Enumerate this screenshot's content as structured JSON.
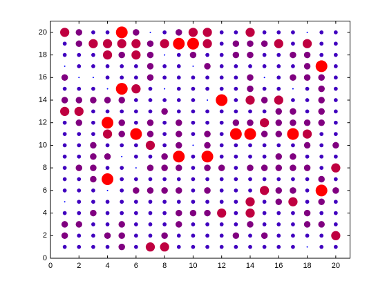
{
  "chart_data": {
    "type": "scatter",
    "x": [
      1,
      2,
      3,
      4,
      5,
      6,
      7,
      8,
      9,
      10,
      11,
      12,
      13,
      14,
      15,
      16,
      17,
      18,
      19,
      20
    ],
    "y": [
      20,
      19,
      18,
      17,
      16,
      15,
      14,
      13,
      12,
      11,
      10,
      9,
      8,
      7,
      6,
      5,
      4,
      3,
      2,
      1
    ],
    "sizes": [
      [
        4,
        3,
        2,
        2,
        5,
        3,
        1,
        2,
        3,
        4,
        4,
        2,
        2,
        4,
        2,
        2,
        2,
        1,
        2,
        2
      ],
      [
        2,
        3,
        4,
        4,
        4,
        4,
        3,
        4,
        5,
        5,
        4,
        2,
        3,
        3,
        3,
        4,
        2,
        4,
        2,
        2
      ],
      [
        2,
        2,
        2,
        4,
        3,
        4,
        3,
        1,
        2,
        3,
        2,
        2,
        3,
        3,
        2,
        2,
        3,
        3,
        2,
        2
      ],
      [
        1,
        2,
        2,
        2,
        2,
        2,
        3,
        2,
        2,
        1,
        3,
        2,
        2,
        2,
        2,
        2,
        2,
        3,
        5,
        2
      ],
      [
        3,
        1,
        1,
        2,
        2,
        2,
        3,
        2,
        2,
        2,
        2,
        2,
        2,
        3,
        1,
        2,
        3,
        3,
        3,
        2
      ],
      [
        2,
        2,
        2,
        1,
        5,
        4,
        2,
        1,
        2,
        2,
        2,
        2,
        2,
        3,
        2,
        2,
        1,
        2,
        3,
        2
      ],
      [
        3,
        3,
        3,
        3,
        3,
        2,
        2,
        2,
        2,
        2,
        1,
        5,
        2,
        4,
        3,
        4,
        2,
        2,
        3,
        2
      ],
      [
        4,
        4,
        2,
        2,
        2,
        2,
        2,
        3,
        2,
        2,
        2,
        2,
        2,
        2,
        2,
        3,
        3,
        2,
        3,
        2
      ],
      [
        2,
        3,
        2,
        5,
        3,
        2,
        3,
        2,
        3,
        2,
        2,
        2,
        3,
        3,
        4,
        3,
        3,
        3,
        3,
        2
      ],
      [
        2,
        2,
        2,
        4,
        3,
        5,
        3,
        2,
        3,
        2,
        3,
        2,
        5,
        5,
        3,
        3,
        5,
        4,
        2,
        2
      ],
      [
        2,
        2,
        3,
        2,
        2,
        2,
        4,
        2,
        3,
        1,
        3,
        2,
        2,
        2,
        2,
        2,
        2,
        3,
        2,
        3
      ],
      [
        2,
        2,
        3,
        3,
        1,
        2,
        2,
        3,
        5,
        2,
        5,
        2,
        2,
        2,
        2,
        3,
        3,
        2,
        2,
        2
      ],
      [
        2,
        3,
        3,
        2,
        2,
        1,
        3,
        3,
        3,
        2,
        3,
        3,
        2,
        3,
        3,
        3,
        3,
        3,
        2,
        4
      ],
      [
        2,
        2,
        3,
        5,
        2,
        2,
        2,
        2,
        2,
        2,
        2,
        2,
        2,
        2,
        2,
        2,
        2,
        2,
        3,
        2
      ],
      [
        2,
        2,
        2,
        1,
        2,
        3,
        3,
        3,
        3,
        2,
        3,
        2,
        2,
        2,
        4,
        3,
        3,
        2,
        5,
        3
      ],
      [
        1,
        2,
        2,
        2,
        2,
        2,
        2,
        2,
        2,
        2,
        2,
        2,
        2,
        4,
        2,
        3,
        4,
        2,
        3,
        2
      ],
      [
        2,
        2,
        3,
        2,
        2,
        2,
        2,
        2,
        3,
        3,
        3,
        4,
        2,
        4,
        2,
        2,
        2,
        3,
        2,
        2
      ],
      [
        3,
        3,
        2,
        2,
        3,
        2,
        2,
        2,
        3,
        2,
        2,
        2,
        2,
        3,
        2,
        2,
        2,
        3,
        3,
        2
      ],
      [
        3,
        2,
        2,
        3,
        3,
        2,
        2,
        3,
        2,
        2,
        2,
        2,
        3,
        2,
        3,
        2,
        2,
        2,
        2,
        4
      ],
      [
        2,
        2,
        2,
        2,
        3,
        2,
        4,
        4,
        2,
        2,
        2,
        2,
        2,
        2,
        2,
        2,
        2,
        1,
        2,
        2
      ]
    ],
    "color_range": [
      "#0000ff",
      "#ff0000"
    ],
    "xlim": [
      0,
      21
    ],
    "ylim": [
      0,
      21
    ],
    "xticks": [
      0,
      2,
      4,
      6,
      8,
      10,
      12,
      14,
      16,
      18,
      20
    ],
    "yticks": [
      0,
      2,
      4,
      6,
      8,
      10,
      12,
      14,
      16,
      18,
      20
    ]
  }
}
